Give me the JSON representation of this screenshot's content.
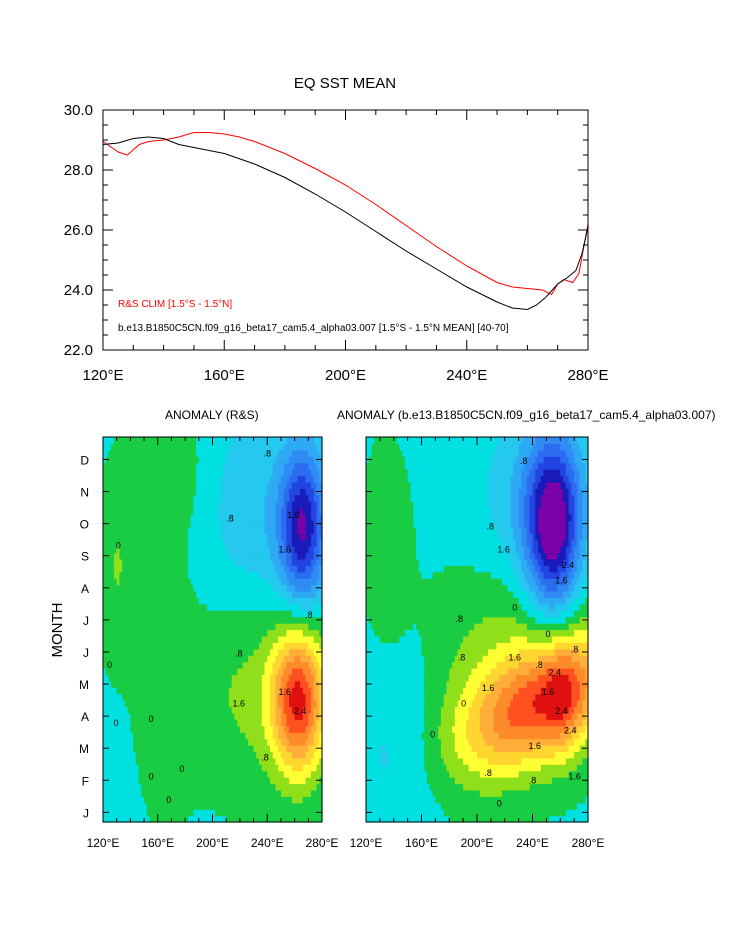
{
  "chart_data": [
    {
      "type": "line",
      "title": "EQ SST MEAN",
      "xlabel": "",
      "ylabel": "",
      "xlim": [
        120,
        280
      ],
      "ylim": [
        22,
        30
      ],
      "x_ticks": [
        120,
        160,
        200,
        240,
        280
      ],
      "x_tick_labels": [
        "120°E",
        "160°E",
        "200°E",
        "240°E",
        "280°E"
      ],
      "y_ticks": [
        22,
        24,
        26,
        28,
        30
      ],
      "y_tick_labels": [
        "22.0",
        "24.0",
        "26.0",
        "28.0",
        "30.0"
      ],
      "legend_position": "bottom-left",
      "series": [
        {
          "name": "R&S CLIM [1.5°S - 1.5°N]",
          "color": "#ff0000",
          "x": [
            120,
            125,
            128,
            132,
            135,
            140,
            145,
            150,
            155,
            160,
            165,
            170,
            180,
            190,
            200,
            210,
            220,
            230,
            240,
            250,
            255,
            260,
            265,
            268,
            270,
            272,
            275,
            277,
            280
          ],
          "y": [
            28.95,
            28.6,
            28.5,
            28.85,
            28.95,
            29.0,
            29.1,
            29.25,
            29.25,
            29.2,
            29.1,
            28.95,
            28.55,
            28.05,
            27.5,
            26.85,
            26.15,
            25.45,
            24.8,
            24.25,
            24.1,
            24.05,
            24.0,
            23.85,
            24.2,
            24.35,
            24.25,
            24.55,
            26.2
          ]
        },
        {
          "name": "b.e13.B1850C5CN.f09_g16_beta17_cam5.4_alpha03.007 [1.5°S - 1.5°N MEAN] [40-70]",
          "color": "#000000",
          "x": [
            120,
            125,
            130,
            135,
            140,
            145,
            150,
            160,
            170,
            180,
            190,
            200,
            210,
            220,
            230,
            240,
            250,
            255,
            260,
            263,
            266,
            270,
            273,
            276,
            278,
            280
          ],
          "y": [
            28.85,
            28.9,
            29.05,
            29.1,
            29.05,
            28.85,
            28.75,
            28.55,
            28.2,
            27.75,
            27.2,
            26.6,
            25.95,
            25.3,
            24.7,
            24.1,
            23.6,
            23.4,
            23.35,
            23.5,
            23.75,
            24.2,
            24.4,
            24.65,
            25.2,
            26.1
          ]
        }
      ]
    },
    {
      "type": "heatmap",
      "title": "ANOMALY (R&S)",
      "xlabel": "",
      "ylabel": "MONTH",
      "xlim": [
        120,
        280
      ],
      "x_ticks": [
        120,
        160,
        200,
        240,
        280
      ],
      "x_tick_labels": [
        "120°E",
        "160°E",
        "200°E",
        "240°E",
        "280°E"
      ],
      "y_tick_labels": [
        "J",
        "F",
        "M",
        "A",
        "M",
        "J",
        "J",
        "A",
        "S",
        "O",
        "N",
        "D"
      ],
      "colorbar_range": [
        -3.0,
        3.0
      ],
      "contour_interval": 0.4,
      "contour_labels": [
        ".8",
        ".8",
        "1.6",
        "1.6",
        ".8",
        "0",
        "0",
        "0",
        ".8",
        "0",
        "1.6",
        "2.4",
        ".8",
        "0",
        "0",
        "0",
        "1.6"
      ],
      "features": [
        {
          "label": "cold anomaly",
          "lon": 265,
          "month": "S",
          "min_value": -2.6
        },
        {
          "label": "warm anomaly",
          "lon": 263,
          "month": "M",
          "max_value": 2.8
        }
      ]
    },
    {
      "type": "heatmap",
      "title": "ANOMALY (b.e13.B1850C5CN.f09_g16_beta17_cam5.4_alpha03.007)",
      "xlabel": "",
      "ylabel": "",
      "xlim": [
        120,
        280
      ],
      "x_ticks": [
        120,
        160,
        200,
        240,
        280
      ],
      "x_tick_labels": [
        "120°E",
        "160°E",
        "200°E",
        "240°E",
        "280°E"
      ],
      "y_tick_labels": [
        "J",
        "F",
        "M",
        "A",
        "M",
        "J",
        "J",
        "A",
        "S",
        "O",
        "N",
        "D"
      ],
      "colorbar_range": [
        -3.0,
        3.0
      ],
      "contour_interval": 0.4,
      "contour_labels": [
        ".8",
        "1.6",
        ".8",
        "0",
        "2.4",
        "0",
        ".8",
        "1.6",
        "2.4",
        "1.6",
        "0",
        ".8",
        "1.6",
        "2.4",
        ".8",
        "0",
        "1.6",
        "2.4",
        "1.6",
        ".8",
        "0",
        ".8",
        "1.6",
        ".8"
      ],
      "features": [
        {
          "label": "cold anomaly",
          "lon": 255,
          "month": "S",
          "min_value": -3.0
        },
        {
          "label": "warm anomaly",
          "lon": 258,
          "month": "A",
          "max_value": 3.0
        }
      ]
    }
  ]
}
